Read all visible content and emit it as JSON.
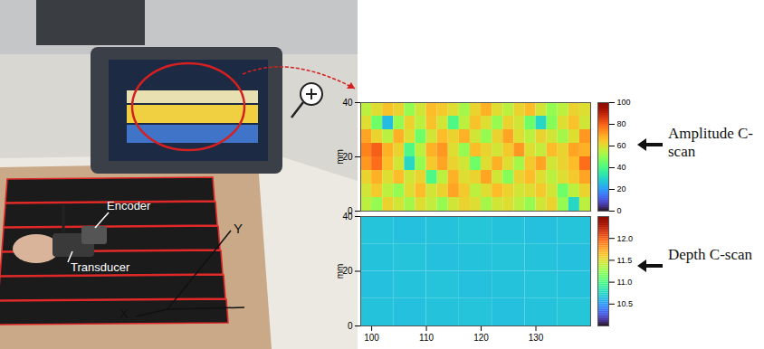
{
  "photo": {
    "labels": {
      "encoder": "Encoder",
      "transducer": "Transducer",
      "x_axis": "X",
      "y_axis": "Y"
    }
  },
  "chart_data": [
    {
      "type": "heatmap",
      "annotation": "Amplitude C-scan",
      "x": [
        99,
        101,
        103,
        105,
        107,
        109,
        111,
        113,
        115,
        117,
        119,
        121,
        123,
        125,
        127,
        129,
        131,
        133,
        135,
        137,
        139
      ],
      "y": [
        37.5,
        32.5,
        27.5,
        22.5,
        17.5,
        12.5,
        7.5,
        2.5
      ],
      "cells": [
        [
          55,
          60,
          65,
          62,
          50,
          58,
          66,
          64,
          60,
          52,
          62,
          68,
          60,
          55,
          62,
          66,
          58,
          50,
          55,
          62,
          60
        ],
        [
          60,
          45,
          25,
          50,
          62,
          55,
          65,
          58,
          40,
          55,
          65,
          60,
          50,
          62,
          58,
          45,
          30,
          48,
          60,
          65,
          58
        ],
        [
          70,
          62,
          55,
          68,
          60,
          45,
          58,
          66,
          62,
          68,
          58,
          50,
          62,
          70,
          60,
          55,
          62,
          58,
          52,
          60,
          72
        ],
        [
          75,
          80,
          68,
          62,
          40,
          55,
          68,
          72,
          60,
          50,
          66,
          62,
          58,
          64,
          72,
          60,
          56,
          66,
          62,
          70,
          68
        ],
        [
          72,
          78,
          66,
          58,
          30,
          50,
          64,
          70,
          62,
          58,
          45,
          60,
          68,
          60,
          52,
          64,
          70,
          58,
          62,
          66,
          78
        ],
        [
          62,
          68,
          60,
          66,
          58,
          62,
          40,
          55,
          68,
          60,
          62,
          70,
          58,
          48,
          62,
          66,
          60,
          55,
          60,
          64,
          70
        ],
        [
          58,
          64,
          55,
          50,
          60,
          66,
          58,
          62,
          70,
          64,
          55,
          60,
          66,
          62,
          58,
          60,
          64,
          58,
          45,
          55,
          62
        ],
        [
          55,
          50,
          62,
          58,
          52,
          60,
          56,
          50,
          58,
          62,
          60,
          52,
          58,
          60,
          55,
          50,
          58,
          62,
          50,
          30,
          55
        ]
      ],
      "xlim": [
        98,
        140
      ],
      "ylim": [
        0,
        40
      ],
      "yticks": [
        0,
        20,
        40
      ],
      "ylabel": "mm",
      "tick_labels": "y",
      "colorbar": {
        "range": [
          0,
          100
        ],
        "ticks": [
          0,
          20,
          40,
          60,
          80,
          100
        ]
      }
    },
    {
      "type": "heatmap",
      "annotation": "Depth C-scan",
      "x": [
        101,
        107,
        113,
        119,
        125,
        131,
        137
      ],
      "y": [
        35,
        25,
        15,
        5
      ],
      "cells": [
        [
          10.66,
          10.64,
          10.65,
          10.67,
          10.65,
          10.64,
          10.66
        ],
        [
          10.65,
          10.66,
          10.64,
          10.65,
          10.66,
          10.65,
          10.64
        ],
        [
          10.64,
          10.65,
          10.66,
          10.64,
          10.65,
          10.66,
          10.65
        ],
        [
          10.65,
          10.64,
          10.65,
          10.66,
          10.64,
          10.65,
          10.67
        ]
      ],
      "xlim": [
        98,
        140
      ],
      "ylim": [
        0,
        40
      ],
      "xticks": [
        100,
        110,
        120,
        130
      ],
      "yticks": [
        0,
        20,
        40
      ],
      "ylabel": "mm",
      "colorbar": {
        "range": [
          10,
          12.5
        ],
        "ticks": [
          {
            "value": 10.5,
            "label": "10.5"
          },
          {
            "value": 11,
            "label": "11.0"
          },
          {
            "value": 11.5,
            "label": "11.5"
          },
          {
            "value": 12,
            "label": "12.0"
          }
        ]
      }
    }
  ]
}
